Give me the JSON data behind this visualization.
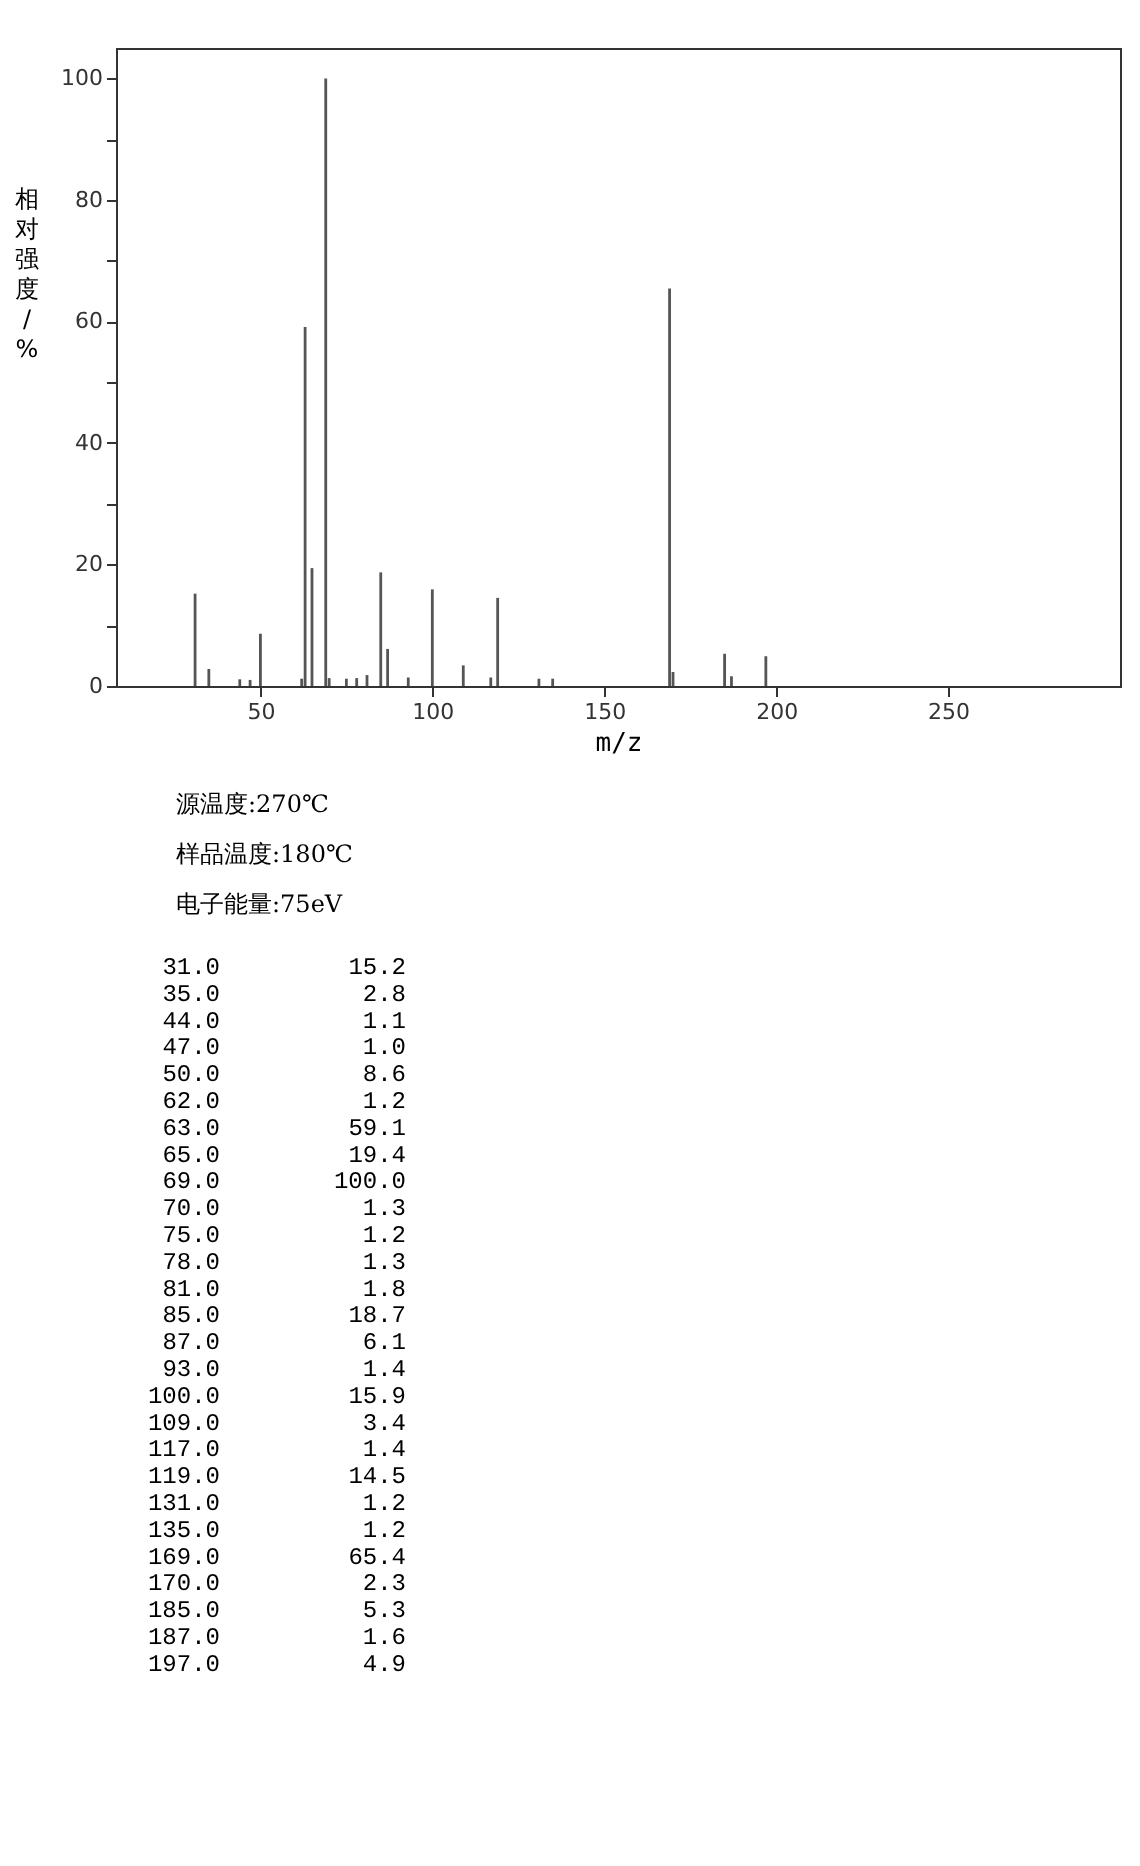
{
  "chart_data": {
    "type": "bar",
    "xlabel": "m/z",
    "ylabel": "相对强度/%",
    "x": [
      31.0,
      35.0,
      44.0,
      47.0,
      50.0,
      62.0,
      63.0,
      65.0,
      69.0,
      70.0,
      75.0,
      78.0,
      81.0,
      85.0,
      87.0,
      93.0,
      100.0,
      109.0,
      117.0,
      119.0,
      131.0,
      135.0,
      169.0,
      170.0,
      185.0,
      187.0,
      197.0
    ],
    "values": [
      15.2,
      2.8,
      1.1,
      1.0,
      8.6,
      1.2,
      59.1,
      19.4,
      100.0,
      1.3,
      1.2,
      1.3,
      1.8,
      18.7,
      6.1,
      1.4,
      15.9,
      3.4,
      1.4,
      14.5,
      1.2,
      1.2,
      65.4,
      2.3,
      5.3,
      1.6,
      4.9
    ],
    "color": "#555555",
    "xlim": [
      8,
      300
    ],
    "xticks": [
      50,
      100,
      150,
      200,
      250
    ],
    "ylim": [
      0,
      105
    ],
    "yticks": [
      0,
      {
        "value": 10,
        "label": null
      },
      20,
      {
        "value": 30,
        "label": null
      },
      40,
      {
        "value": 50,
        "label": null
      },
      60,
      {
        "value": 70,
        "label": null
      },
      80,
      {
        "value": 90,
        "label": null
      },
      100
    ],
    "grid": false,
    "annotations": [
      "源温度:270℃",
      "样品温度:180℃",
      "电子能量:75eV",
      "31.0",
      "15.2",
      "35.0",
      "2.8",
      "44.0",
      "1.1",
      "47.0",
      "1.0",
      "50.0",
      "8.6",
      "62.0",
      "1.2",
      "63.0",
      "59.1",
      "65.0",
      "19.4",
      "69.0",
      "100.0",
      "70.0",
      "1.3",
      "75.0",
      "1.2",
      "78.0",
      "1.3",
      "81.0",
      "1.8",
      "85.0",
      "18.7",
      "87.0",
      "6.1",
      "93.0",
      "1.4",
      "100.0",
      "15.9",
      "109.0",
      "3.4",
      "117.0",
      "1.4",
      "119.0",
      "14.5",
      "131.0",
      "1.2",
      "135.0",
      "1.2",
      "169.0",
      "65.4",
      "170.0",
      "2.3",
      "185.0",
      "5.3",
      "187.0",
      "1.6",
      "197.0",
      "4.9"
    ]
  }
}
